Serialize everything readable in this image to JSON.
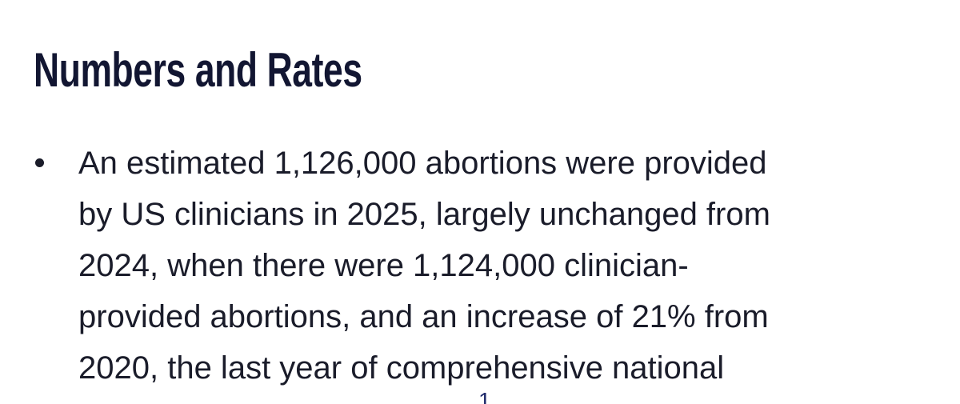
{
  "section": {
    "title": "Numbers and Rates"
  },
  "bullets": [
    {
      "lines": [
        "An estimated 1,126,000 abortions were provided",
        "by US clinicians in 2025, largely unchanged from",
        "2024, when there were 1,124,000 clinician-",
        "provided abortions, and an increase of 21% from",
        "2020, the last year of comprehensive national"
      ],
      "footnote_ref": "1"
    }
  ],
  "colors": {
    "heading": "#121632",
    "body_text": "#1a1c2a",
    "footnote_link": "#1f2a6b",
    "background": "#ffffff"
  }
}
